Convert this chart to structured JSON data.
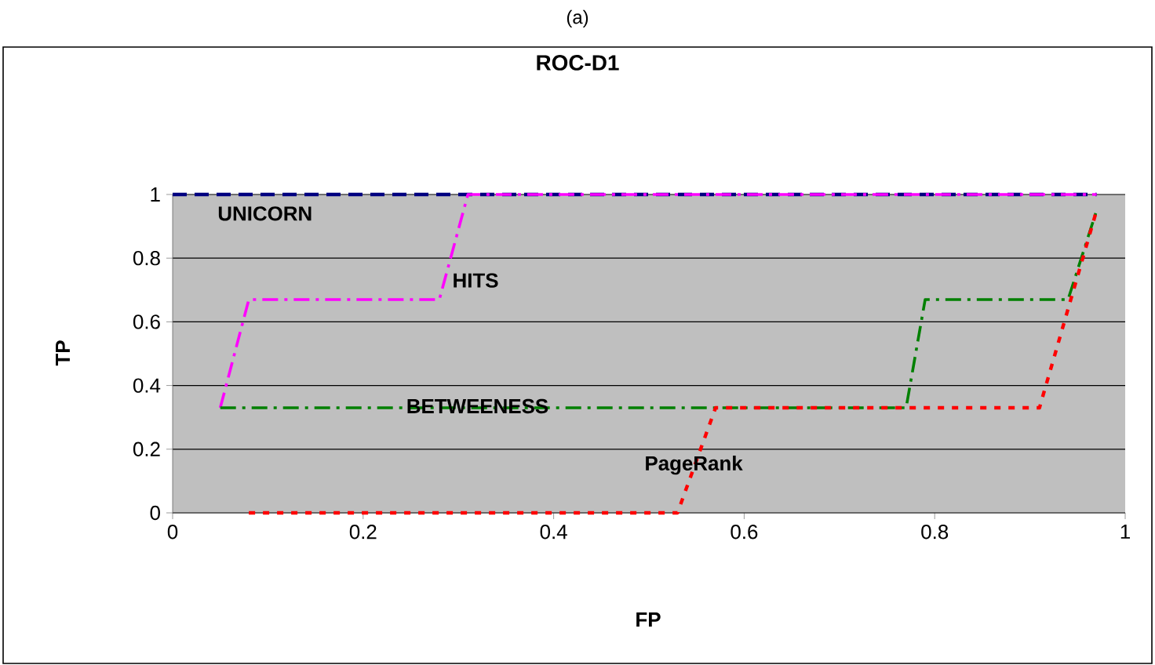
{
  "chart_data": {
    "type": "line",
    "title": "ROC-D1",
    "xlabel": "FP",
    "ylabel": "TP",
    "annotations": [
      "(a)"
    ],
    "series": [
      {
        "name": "UNICORN",
        "color": "#000080",
        "line_style": "dashed",
        "x": [
          0,
          0.97
        ],
        "values": [
          1,
          1
        ]
      },
      {
        "name": "HITS",
        "color": "#ff00ff",
        "line_style": "dashdot",
        "x": [
          0.05,
          0.08,
          0.28,
          0.31,
          0.97
        ],
        "values": [
          0.33,
          0.67,
          0.67,
          1,
          1
        ]
      },
      {
        "name": "BETWEENESS",
        "color": "#008000",
        "line_style": "dashdot",
        "x": [
          0.05,
          0.77,
          0.79,
          0.94,
          0.97
        ],
        "values": [
          0.33,
          0.33,
          0.67,
          0.67,
          0.95
        ]
      },
      {
        "name": "PageRank",
        "color": "#ff0000",
        "line_style": "dotted",
        "x": [
          0.08,
          0.53,
          0.57,
          0.91,
          0.97
        ],
        "values": [
          0,
          0,
          0.33,
          0.33,
          0.95
        ]
      }
    ],
    "xlim": [
      0,
      1
    ],
    "ylim": [
      0,
      1
    ],
    "xticks": [
      0,
      0.2,
      0.4,
      0.6,
      0.8,
      1
    ],
    "yticks": [
      0,
      0.2,
      0.4,
      0.6,
      0.8,
      1
    ],
    "grid": "y",
    "legend": false
  }
}
